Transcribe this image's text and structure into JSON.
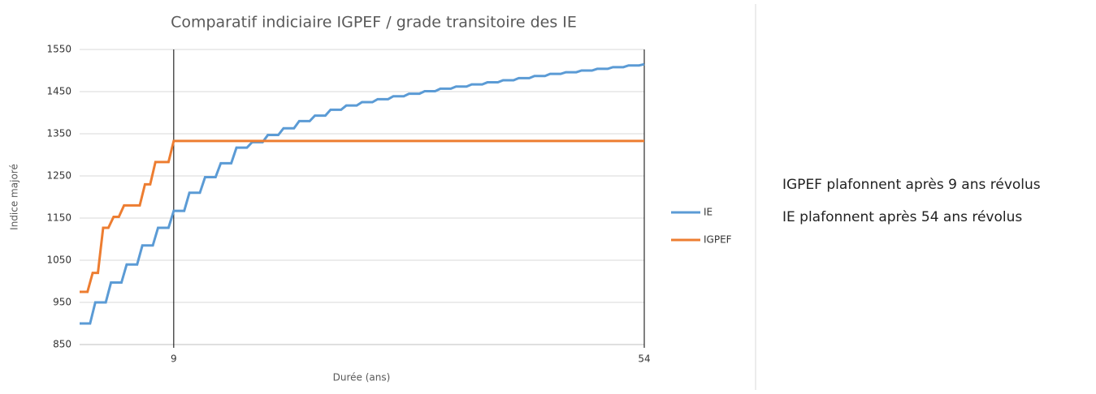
{
  "chart_data": {
    "type": "line",
    "title": "Comparatif indiciaire IGPEF / grade transitoire des IE",
    "x_label": "Durée (ans)",
    "y_label": "Indice majoré",
    "xlim": [
      0,
      54
    ],
    "xticks": [
      9,
      54
    ],
    "ylim": [
      850,
      1550
    ],
    "yticks": [
      850,
      950,
      1050,
      1150,
      1250,
      1350,
      1450,
      1550
    ],
    "grid": true,
    "legend": "right",
    "series": [
      {
        "name": "IE",
        "color": "#5b9bd5",
        "x": [
          0,
          1,
          1.5,
          2.5,
          3,
          4,
          4.5,
          5.5,
          6,
          7,
          7.5,
          8.5,
          9,
          10,
          10.5,
          11.5,
          12,
          13,
          13.5,
          14.5,
          15,
          16,
          16.5,
          17.5,
          18,
          19,
          19.5,
          20.5,
          21,
          22,
          22.5,
          23.5,
          24,
          25,
          25.5,
          26.5,
          27,
          28,
          28.5,
          29.5,
          30,
          31,
          31.5,
          32.5,
          33,
          34,
          34.5,
          35.5,
          36,
          37,
          37.5,
          38.5,
          39,
          40,
          40.5,
          41.5,
          42,
          43,
          43.5,
          44.5,
          45,
          46,
          46.5,
          47.5,
          48,
          49,
          49.5,
          50.5,
          51,
          52,
          52.5,
          53.5,
          54
        ],
        "values": [
          900,
          900,
          950,
          950,
          997,
          997,
          1040,
          1040,
          1085,
          1085,
          1127,
          1127,
          1167,
          1167,
          1210,
          1210,
          1247,
          1247,
          1280,
          1280,
          1317,
          1317,
          1330,
          1330,
          1347,
          1347,
          1363,
          1363,
          1380,
          1380,
          1393,
          1393,
          1407,
          1407,
          1417,
          1417,
          1425,
          1425,
          1432,
          1432,
          1439,
          1439,
          1445,
          1445,
          1451,
          1451,
          1457,
          1457,
          1462,
          1462,
          1467,
          1467,
          1472,
          1472,
          1477,
          1477,
          1482,
          1482,
          1487,
          1487,
          1492,
          1492,
          1496,
          1496,
          1500,
          1500,
          1504,
          1504,
          1508,
          1508,
          1512,
          1512,
          1515
        ]
      },
      {
        "name": "IGPEF",
        "color": "#ed7d31",
        "x": [
          0,
          0.75,
          1.25,
          1.75,
          2.25,
          2.75,
          3.25,
          3.75,
          4.25,
          5.75,
          6.25,
          6.75,
          7.25,
          8.5,
          9,
          54
        ],
        "values": [
          975,
          975,
          1020,
          1020,
          1127,
          1127,
          1153,
          1153,
          1180,
          1180,
          1230,
          1230,
          1283,
          1283,
          1333,
          1333
        ]
      }
    ],
    "annotations": [
      "IGPEF plafonnent après 9 ans révolus",
      "IE plafonnent après 54 ans révolus"
    ]
  }
}
